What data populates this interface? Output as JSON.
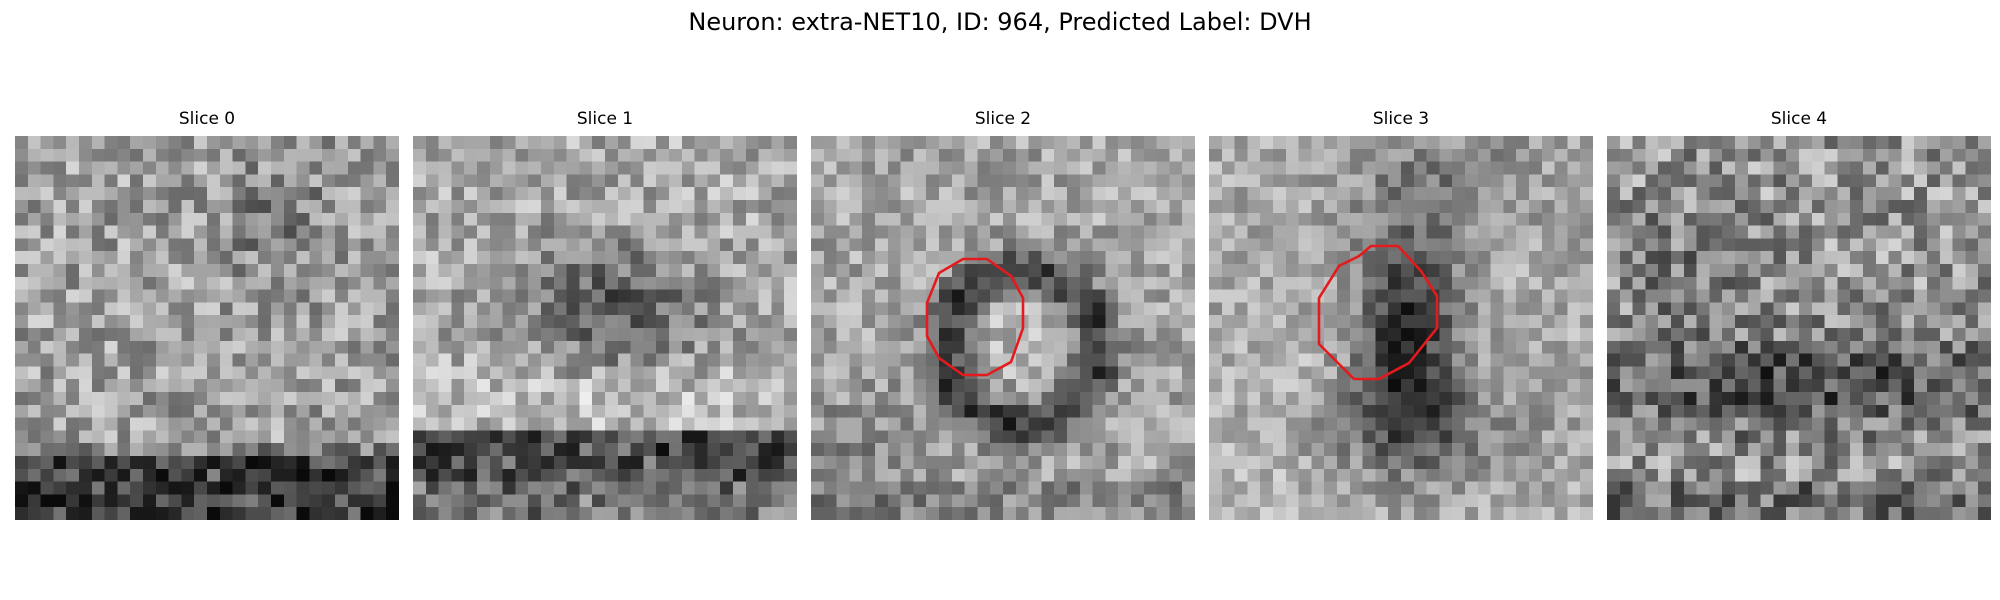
{
  "figure": {
    "title": "Neuron: extra-NET10, ID: 964, Predicted Label: DVH"
  },
  "colors": {
    "contour": "#e41a1c",
    "background": "#ffffff",
    "colormap": "gray"
  },
  "panels": [
    {
      "title": "Slice 0",
      "has_contour": false
    },
    {
      "title": "Slice 1",
      "has_contour": false
    },
    {
      "title": "Slice 2",
      "has_contour": true
    },
    {
      "title": "Slice 3",
      "has_contour": true
    },
    {
      "title": "Slice 4",
      "has_contour": false
    }
  ]
}
